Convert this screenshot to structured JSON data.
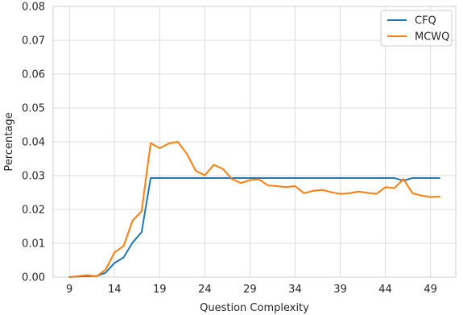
{
  "chart_data": {
    "type": "line",
    "xlabel": "Question Complexity",
    "ylabel": "Percentage",
    "xlim": [
      7.2,
      51.8
    ],
    "ylim": [
      0,
      0.08
    ],
    "xticks": [
      9,
      14,
      19,
      24,
      29,
      34,
      39,
      44,
      49
    ],
    "yticks": [
      0.0,
      0.01,
      0.02,
      0.03,
      0.04,
      0.05,
      0.06,
      0.07,
      0.08
    ],
    "ytick_labels": [
      "0.00",
      "0.01",
      "0.02",
      "0.03",
      "0.04",
      "0.05",
      "0.06",
      "0.07",
      "0.08"
    ],
    "grid": true,
    "legend_position": "top-right",
    "series": [
      {
        "name": "CFQ",
        "color": "#1f77b4",
        "x": [
          9,
          10,
          11,
          12,
          13,
          14,
          15,
          16,
          17,
          18,
          19,
          20,
          21,
          22,
          23,
          24,
          25,
          26,
          27,
          28,
          29,
          30,
          31,
          32,
          33,
          34,
          35,
          36,
          37,
          38,
          39,
          40,
          41,
          42,
          43,
          44,
          45,
          46,
          47,
          48,
          49,
          50
        ],
        "values": [
          0.0,
          0.0002,
          0.0003,
          0.0003,
          0.0013,
          0.0042,
          0.0058,
          0.0102,
          0.0133,
          0.0293,
          0.0293,
          0.0293,
          0.0293,
          0.0293,
          0.0293,
          0.0293,
          0.0293,
          0.0293,
          0.0293,
          0.0293,
          0.0293,
          0.0293,
          0.0293,
          0.0293,
          0.0293,
          0.0293,
          0.0293,
          0.0293,
          0.0293,
          0.0293,
          0.0293,
          0.0293,
          0.0293,
          0.0293,
          0.0293,
          0.0293,
          0.0293,
          0.0285,
          0.0293,
          0.0293,
          0.0293,
          0.0293
        ]
      },
      {
        "name": "MCWQ",
        "color": "#ff7f0e",
        "x": [
          9,
          10,
          11,
          12,
          13,
          14,
          15,
          16,
          17,
          18,
          19,
          20,
          21,
          22,
          23,
          24,
          25,
          26,
          27,
          28,
          29,
          30,
          31,
          32,
          33,
          34,
          35,
          36,
          37,
          38,
          39,
          40,
          41,
          42,
          43,
          44,
          45,
          46,
          47,
          48,
          49,
          50
        ],
        "values": [
          0.0,
          0.0003,
          0.0006,
          0.0002,
          0.0022,
          0.0073,
          0.0092,
          0.0167,
          0.0195,
          0.0396,
          0.0381,
          0.0395,
          0.04,
          0.0365,
          0.0314,
          0.0301,
          0.0332,
          0.032,
          0.029,
          0.0278,
          0.0287,
          0.0289,
          0.0271,
          0.0269,
          0.0266,
          0.0269,
          0.0248,
          0.0255,
          0.0258,
          0.0251,
          0.0246,
          0.0248,
          0.0253,
          0.0249,
          0.0246,
          0.0266,
          0.0263,
          0.029,
          0.0248,
          0.0241,
          0.0237,
          0.0238
        ]
      }
    ]
  }
}
